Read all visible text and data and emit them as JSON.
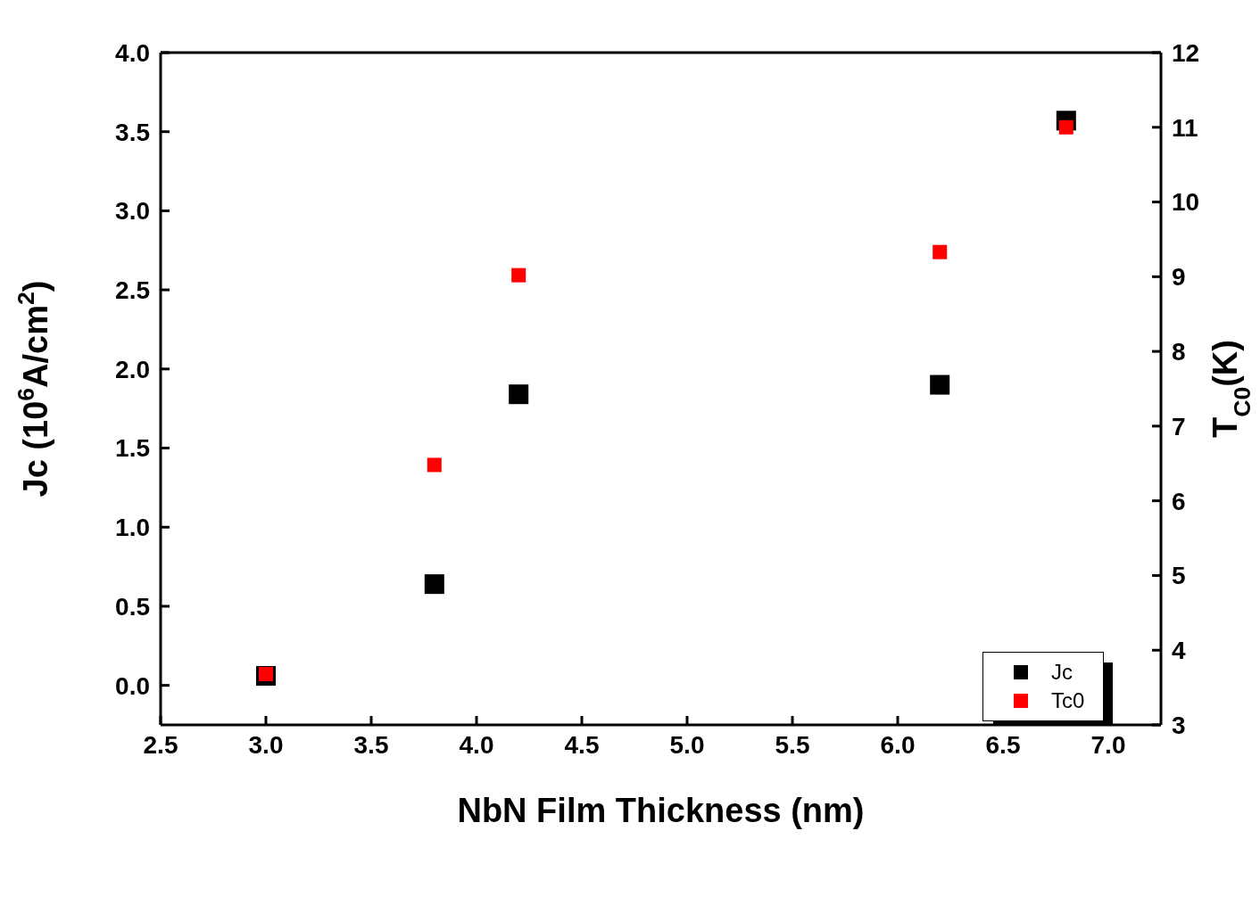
{
  "chart_data": {
    "type": "scatter",
    "xlabel": "NbN Film Thickness (nm)",
    "ylabel": "Jc (10$^{6}$A/cm$^{2}$)",
    "y2label": "T$_{C0}$(K)",
    "x": [
      3.0,
      3.8,
      4.2,
      6.2,
      6.8
    ],
    "series": [
      {
        "name": "Jc",
        "color": "#000000",
        "values": [
          0.06,
          0.64,
          1.84,
          1.9,
          3.57
        ]
      },
      {
        "name": "Tc0",
        "color": "#ff0000",
        "axis": "y2",
        "values": [
          3.68,
          6.48,
          9.02,
          9.33,
          11.0
        ]
      }
    ],
    "xlim": [
      2.5,
      7.25
    ],
    "xticks": [
      {
        "value": 2.5,
        "label": "2.5"
      },
      {
        "value": 3,
        "label": "3.0"
      },
      {
        "value": 3.5,
        "label": "3.5"
      },
      {
        "value": 4,
        "label": "4.0"
      },
      {
        "value": 4.5,
        "label": "4.5"
      },
      {
        "value": 5,
        "label": "5.0"
      },
      {
        "value": 5.5,
        "label": "5.5"
      },
      {
        "value": 6,
        "label": "6.0"
      },
      {
        "value": 6.5,
        "label": "6.5"
      },
      {
        "value": 7,
        "label": "7.0"
      }
    ],
    "ylim": [
      -0.25,
      4
    ],
    "yticks": [
      {
        "value": 0,
        "label": "0.0"
      },
      {
        "value": 0.5,
        "label": "0.5"
      },
      {
        "value": 1,
        "label": "1.0"
      },
      {
        "value": 1.5,
        "label": "1.5"
      },
      {
        "value": 2,
        "label": "2.0"
      },
      {
        "value": 2.5,
        "label": "2.5"
      },
      {
        "value": 3,
        "label": "3.0"
      },
      {
        "value": 3.5,
        "label": "3.5"
      },
      {
        "value": 4,
        "label": "4.0"
      }
    ],
    "y2lim": [
      3,
      12
    ],
    "y2ticks": [
      3,
      4,
      5,
      6,
      7,
      8,
      9,
      10,
      11,
      12
    ],
    "marker": "square",
    "legend": "bottom right"
  }
}
